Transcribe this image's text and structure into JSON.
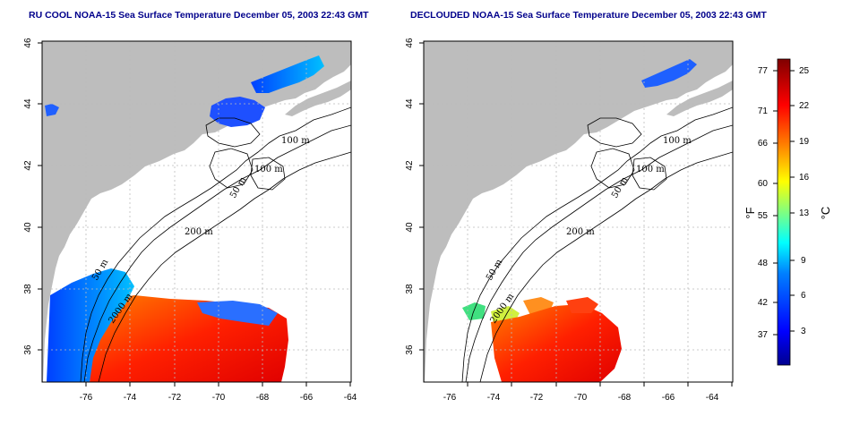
{
  "panels": [
    {
      "title": "RU COOL NOAA-15 Sea Surface Temperature December 05, 2003 22:43 GMT",
      "x_ticks": [
        "-76",
        "-74",
        "-72",
        "-70",
        "-68",
        "-66",
        "-64"
      ],
      "y_ticks": [
        "36",
        "38",
        "40",
        "42",
        "44",
        "46"
      ],
      "contour_labels": [
        "100 m",
        "100 m",
        "50 m",
        "200 m",
        "50 m",
        "2000 m"
      ]
    },
    {
      "title": "DECLOUDED NOAA-15 Sea Surface Temperature December 05, 2003 22:43 GMT",
      "x_ticks": [
        "-76",
        "-74",
        "-72",
        "-70",
        "-68",
        "-66",
        "-64"
      ],
      "y_ticks": [
        "36",
        "38",
        "40",
        "42",
        "44",
        "46"
      ],
      "contour_labels": [
        "100 m",
        "100 m",
        "50 m",
        "200 m",
        "50 m",
        "2000 m"
      ]
    }
  ],
  "colorbar": {
    "fahrenheit_label": "°F",
    "celsius_label": "°C",
    "fahrenheit_ticks": [
      "77",
      "71",
      "66",
      "60",
      "55",
      "48",
      "42",
      "37"
    ],
    "celsius_ticks": [
      "25",
      "22",
      "19",
      "16",
      "13",
      "9",
      "6",
      "3"
    ],
    "colors": [
      "#00008f",
      "#0000ff",
      "#0080ff",
      "#00ffff",
      "#80ff80",
      "#ffff00",
      "#ff8000",
      "#ff0000",
      "#800000"
    ]
  },
  "colors": {
    "land": "#bdbdbd",
    "ocean": "#ffffff",
    "contour": "#000000",
    "title": "#00008b"
  }
}
